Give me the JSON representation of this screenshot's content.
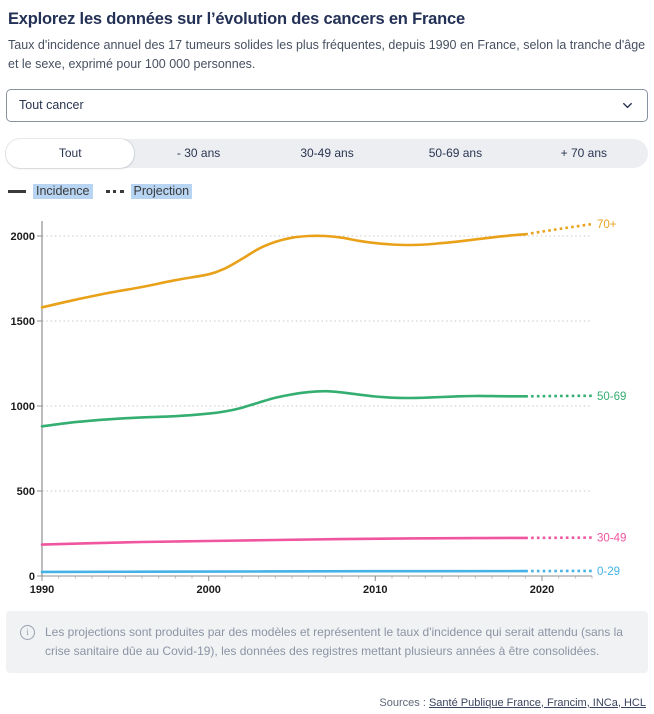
{
  "header": {
    "title": "Explorez les données sur l’évolution des cancers en France",
    "subtitle": "Taux d'incidence annuel des 17 tumeurs solides les plus fréquentes, depuis 1990 en France, selon la tranche d'âge et le sexe, exprimé pour 100 000 personnes."
  },
  "filters": {
    "cancer_select": {
      "value": "Tout cancer",
      "icon": "chevron-down"
    },
    "age_tabs": [
      {
        "label": "Tout",
        "active": true
      },
      {
        "label": "- 30 ans",
        "active": false
      },
      {
        "label": "30-49 ans",
        "active": false
      },
      {
        "label": "50-69 ans",
        "active": false
      },
      {
        "label": "+ 70 ans",
        "active": false
      }
    ]
  },
  "legend": {
    "incidence_label": "Incidence",
    "projection_label": "Projection",
    "highlight_color": "#b7d4f2",
    "swatch_color": "#3a3a3a"
  },
  "chart_data": {
    "type": "line",
    "title": "",
    "xlabel": "",
    "ylabel": "",
    "xlim": [
      1990,
      2023
    ],
    "ylim": [
      0,
      2090
    ],
    "xticks": [
      1990,
      2000,
      2010,
      2020
    ],
    "yticks": [
      0,
      500,
      1000,
      1500,
      2000
    ],
    "grid": "horizontal-dotted",
    "legend_position": "top-left",
    "projection_start_year": 2019,
    "series": [
      {
        "name": "70+",
        "color": "#e9a11a",
        "incidence": [
          [
            1990,
            1580
          ],
          [
            1992,
            1625
          ],
          [
            1994,
            1665
          ],
          [
            1996,
            1700
          ],
          [
            1998,
            1740
          ],
          [
            2000,
            1775
          ],
          [
            2001,
            1810
          ],
          [
            2002,
            1865
          ],
          [
            2003,
            1925
          ],
          [
            2004,
            1965
          ],
          [
            2005,
            1990
          ],
          [
            2006,
            2000
          ],
          [
            2007,
            2000
          ],
          [
            2008,
            1990
          ],
          [
            2009,
            1972
          ],
          [
            2010,
            1958
          ],
          [
            2011,
            1950
          ],
          [
            2012,
            1947
          ],
          [
            2013,
            1950
          ],
          [
            2014,
            1958
          ],
          [
            2015,
            1968
          ],
          [
            2016,
            1980
          ],
          [
            2017,
            1992
          ],
          [
            2018,
            2002
          ],
          [
            2019,
            2010
          ]
        ],
        "projection": [
          [
            2019,
            2010
          ],
          [
            2020,
            2026
          ],
          [
            2021,
            2041
          ],
          [
            2022,
            2056
          ],
          [
            2023,
            2070
          ]
        ]
      },
      {
        "name": "50-69",
        "color": "#34ae71",
        "incidence": [
          [
            1990,
            880
          ],
          [
            1992,
            905
          ],
          [
            1994,
            922
          ],
          [
            1996,
            933
          ],
          [
            1998,
            940
          ],
          [
            2000,
            955
          ],
          [
            2001,
            968
          ],
          [
            2002,
            990
          ],
          [
            2003,
            1020
          ],
          [
            2004,
            1048
          ],
          [
            2005,
            1068
          ],
          [
            2006,
            1082
          ],
          [
            2007,
            1087
          ],
          [
            2008,
            1080
          ],
          [
            2009,
            1067
          ],
          [
            2010,
            1056
          ],
          [
            2011,
            1049
          ],
          [
            2012,
            1047
          ],
          [
            2013,
            1049
          ],
          [
            2014,
            1053
          ],
          [
            2015,
            1057
          ],
          [
            2016,
            1059
          ],
          [
            2017,
            1058
          ],
          [
            2018,
            1057
          ],
          [
            2019,
            1057
          ]
        ],
        "projection": [
          [
            2019,
            1057
          ],
          [
            2021,
            1059
          ],
          [
            2023,
            1060
          ]
        ]
      },
      {
        "name": "30-49",
        "color": "#f0559f",
        "incidence": [
          [
            1990,
            185
          ],
          [
            1993,
            193
          ],
          [
            1996,
            200
          ],
          [
            2000,
            206
          ],
          [
            2004,
            212
          ],
          [
            2008,
            217
          ],
          [
            2012,
            221
          ],
          [
            2016,
            223
          ],
          [
            2019,
            224
          ]
        ],
        "projection": [
          [
            2019,
            224
          ],
          [
            2023,
            226
          ]
        ]
      },
      {
        "name": "0-29",
        "color": "#44b2e7",
        "incidence": [
          [
            1990,
            24
          ],
          [
            2000,
            26
          ],
          [
            2010,
            28
          ],
          [
            2019,
            29
          ]
        ],
        "projection": [
          [
            2019,
            29
          ],
          [
            2023,
            30
          ]
        ]
      }
    ]
  },
  "note": {
    "text": "Les projections sont produites par des modèles et représentent le taux d'incidence qui serait attendu (sans la crise sanitaire dûe au Covid-19), les données des registres mettant plusieurs années à être consolidées."
  },
  "sources": {
    "prefix": "Sources : ",
    "link_text": "Santé Publique France, Francim, INCa, HCL"
  }
}
